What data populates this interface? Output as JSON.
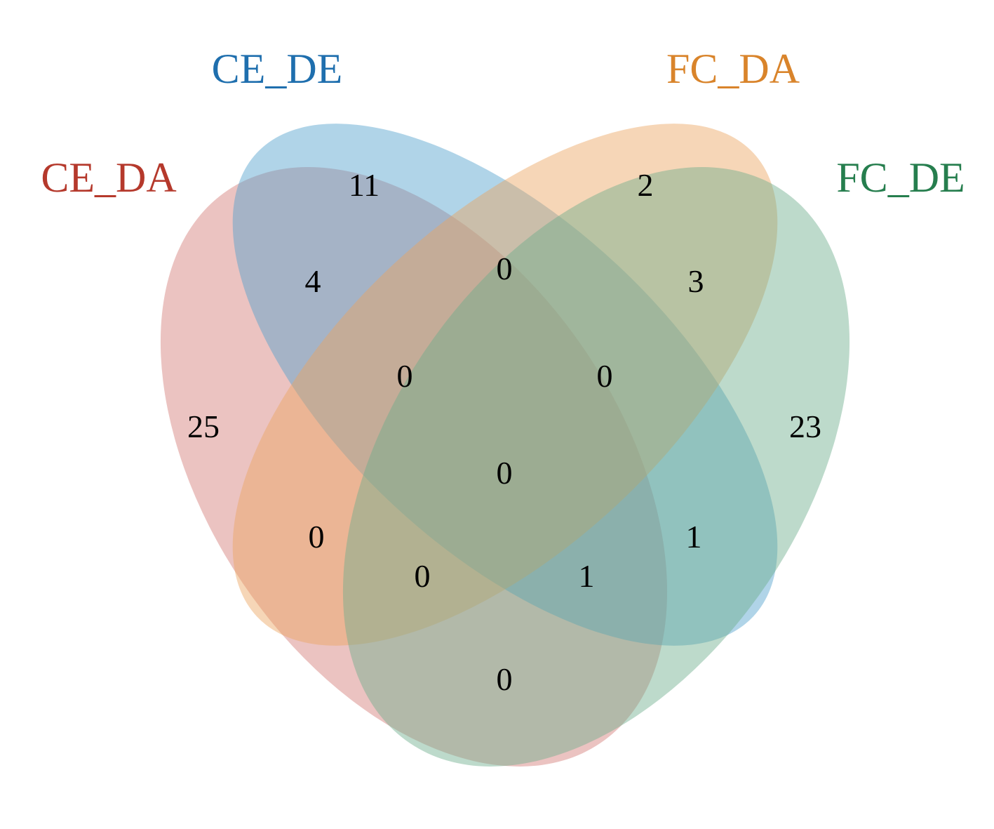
{
  "sets": [
    {
      "id": "ce_da",
      "name": "CE_DA",
      "color": "#b5392c",
      "fill": "#d27b76"
    },
    {
      "id": "ce_de",
      "name": "CE_DE",
      "color": "#1f6fae",
      "fill": "#4f9fcd"
    },
    {
      "id": "fc_da",
      "name": "FC_DA",
      "color": "#d9842b",
      "fill": "#eba460"
    },
    {
      "id": "fc_de",
      "name": "FC_DE",
      "color": "#267e4e",
      "fill": "#6cae8c"
    }
  ],
  "regions": {
    "ce_da_only": "25",
    "ce_de_only": "11",
    "fc_da_only": "2",
    "fc_de_only": "23",
    "ce_da__ce_de": "4",
    "ce_de__fc_da": "0",
    "fc_da__fc_de": "3",
    "ce_da__fc_da": "0",
    "ce_de__fc_de": "1",
    "ce_da__fc_de": "0",
    "ce_da__ce_de__fc_da": "0",
    "ce_de__fc_da__fc_de": "0",
    "ce_da__fc_da__fc_de": "1",
    "ce_da__ce_de__fc_de": "0",
    "all_four": "0"
  }
}
